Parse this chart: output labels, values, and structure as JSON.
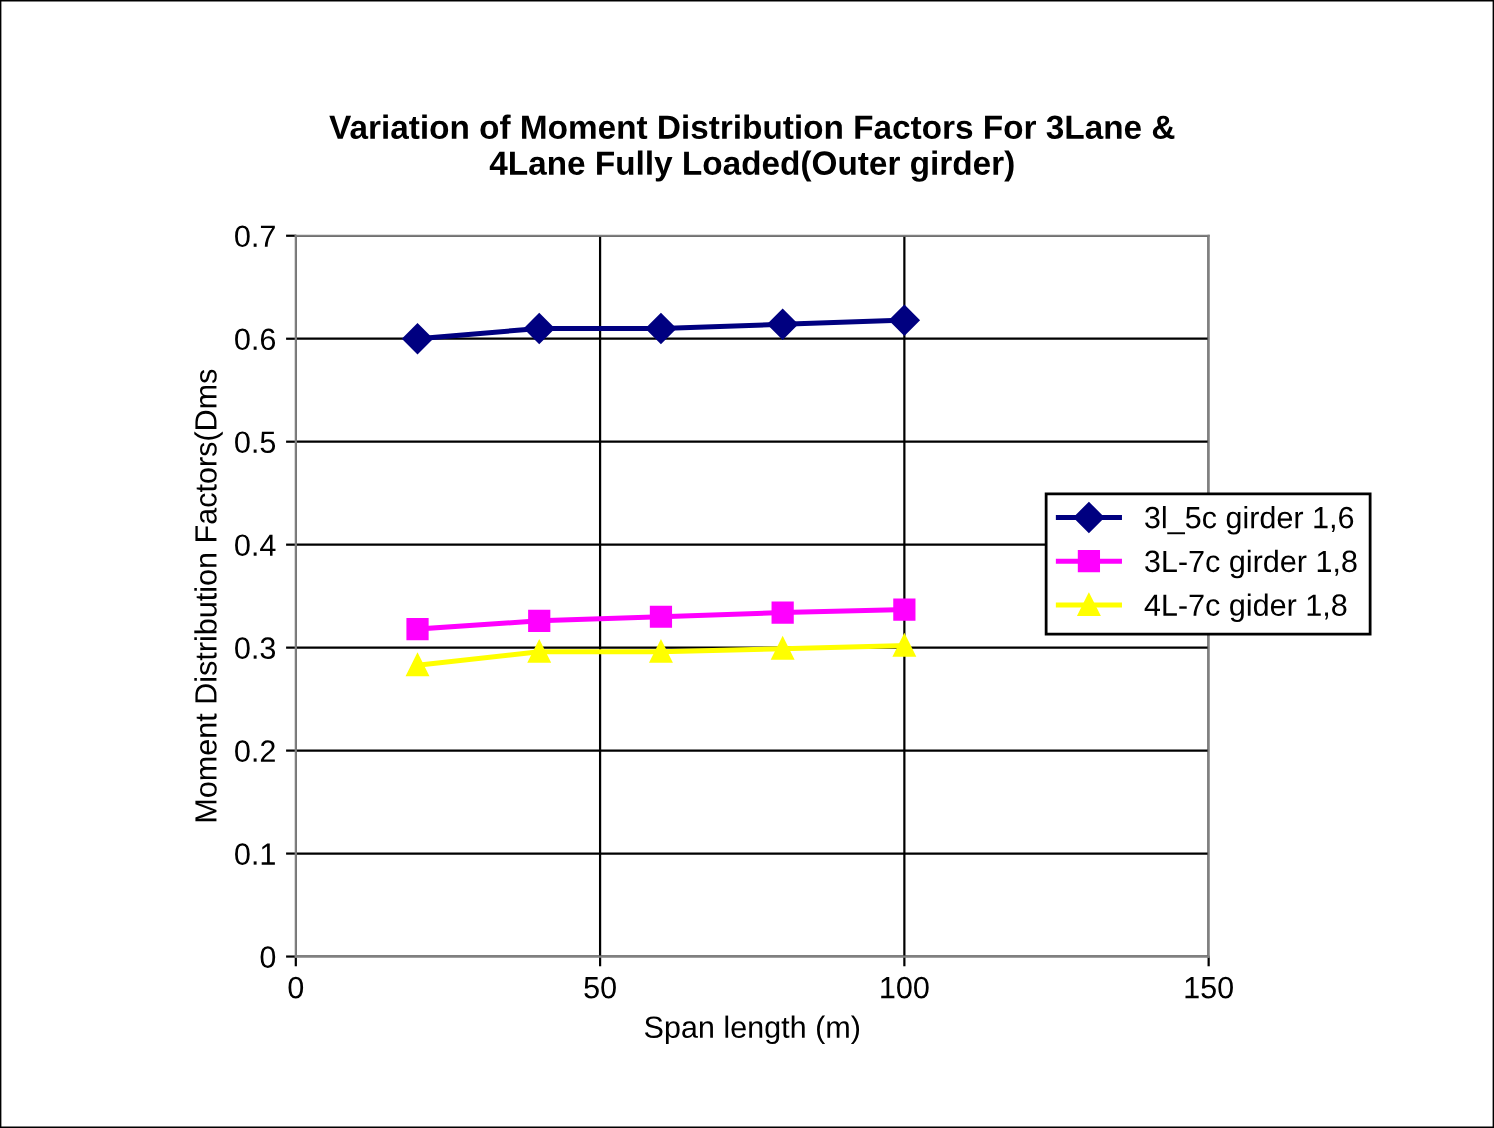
{
  "chart_data": {
    "type": "line",
    "title": "Variation of Moment Distribution Factors For 3Lane &\n4Lane Fully Loaded(Outer girder)",
    "xlabel": "Span length (m)",
    "ylabel": "Moment Distribution Factors(Dms",
    "x": [
      20,
      40,
      60,
      80,
      100
    ],
    "series": [
      {
        "name": "3l_5c girder 1,6",
        "color": "#000080",
        "marker": "diamond",
        "values": [
          0.6,
          0.61,
          0.61,
          0.614,
          0.618
        ]
      },
      {
        "name": "3L-7c girder 1,8",
        "color": "#ff00ff",
        "marker": "square",
        "values": [
          0.318,
          0.326,
          0.33,
          0.334,
          0.337
        ]
      },
      {
        "name": "4L-7c gider 1,8",
        "color": "#ffff00",
        "marker": "triangle",
        "values": [
          0.283,
          0.296,
          0.296,
          0.299,
          0.302
        ]
      }
    ],
    "xlim": [
      0,
      150
    ],
    "xticks": [
      0,
      50,
      100,
      150
    ],
    "ylim": [
      0,
      0.7
    ],
    "yticks": [
      0,
      0.1,
      0.2,
      0.3,
      0.4,
      0.5,
      0.6,
      0.7
    ],
    "grid": true,
    "legend": "right",
    "line_style": "solid"
  }
}
